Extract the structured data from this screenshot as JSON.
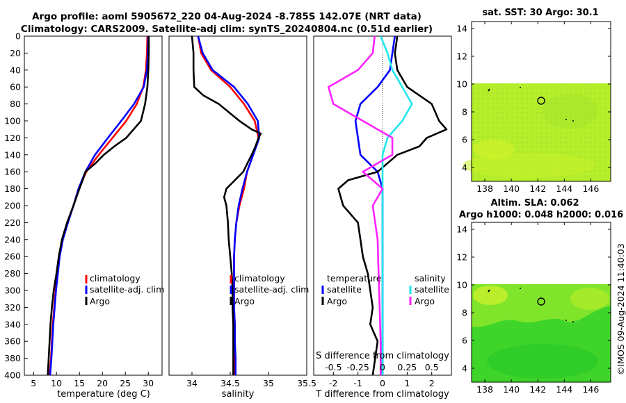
{
  "title_line1": "Argo profile: aoml 5905672_220 04-Aug-2024 -8.785S 142.07E (NRT data)",
  "title_line2": "Climatology: CARS2009. Satellite-adj clim: synTS_20240804.nc (0.51d earlier)",
  "map1_title": "sat. SST: 30 Argo: 30.1",
  "map2_title1": "Altim. SLA: 0.062",
  "map2_title2": "Argo h1000: 0.048 h2000: 0.016",
  "side_stamp": "©IMOS 09-Aug-2024 11:40:03",
  "colors": {
    "climatology": "#ff0000",
    "satellite": "#0000ff",
    "argo": "#000000",
    "s_satellite": "#22e6ee",
    "s_argo": "#ff22ff"
  },
  "chart_data": [
    {
      "type": "line",
      "name": "temperature",
      "xlabel": "temperature (deg C)",
      "ylabel": "",
      "xlim": [
        3,
        33
      ],
      "ylim": [
        400,
        0
      ],
      "xticks": [
        5,
        10,
        15,
        20,
        25,
        30
      ],
      "yticks": [
        0,
        20,
        40,
        60,
        80,
        100,
        120,
        140,
        160,
        180,
        200,
        220,
        240,
        260,
        280,
        300,
        320,
        340,
        360,
        380,
        400
      ],
      "legend": [
        "climatology",
        "satellite-adj. clim",
        "Argo"
      ],
      "series": [
        {
          "name": "climatology",
          "depth": [
            0,
            20,
            40,
            60,
            80,
            100,
            120,
            140,
            160,
            180,
            200,
            220,
            240,
            260,
            280,
            300,
            320,
            340,
            360,
            380,
            400
          ],
          "values": [
            29.8,
            29.7,
            29.5,
            28.9,
            27.5,
            25.2,
            22.2,
            19.2,
            16.5,
            14.8,
            13.7,
            12.4,
            11.3,
            10.6,
            10.2,
            9.8,
            9.5,
            9.2,
            9.0,
            8.8,
            8.5
          ]
        },
        {
          "name": "satellite-adj. clim",
          "depth": [
            0,
            20,
            40,
            60,
            80,
            100,
            120,
            140,
            160,
            180,
            200,
            220,
            240,
            260,
            280,
            300,
            320,
            340,
            360,
            380,
            400
          ],
          "values": [
            30.0,
            29.9,
            29.7,
            29.0,
            26.9,
            24.1,
            21.2,
            18.4,
            16.3,
            14.8,
            13.7,
            12.5,
            11.4,
            10.7,
            10.3,
            9.9,
            9.6,
            9.3,
            9.1,
            8.9,
            8.6
          ]
        },
        {
          "name": "Argo",
          "depth": [
            0,
            20,
            40,
            60,
            80,
            100,
            110,
            120,
            130,
            140,
            150,
            160,
            170,
            180,
            200,
            220,
            240,
            260,
            280,
            300,
            320,
            340,
            360,
            380,
            400
          ],
          "values": [
            30.1,
            30.1,
            30.0,
            29.8,
            29.3,
            28.4,
            26.8,
            25.2,
            22.6,
            20.3,
            18.5,
            16.3,
            15.7,
            15.0,
            13.7,
            12.3,
            11.2,
            10.5,
            10.0,
            9.4,
            9.0,
            8.7,
            8.5,
            8.3,
            8.1
          ]
        }
      ]
    },
    {
      "type": "line",
      "name": "salinity",
      "xlabel": "salinity",
      "xlim": [
        33.7,
        35.5
      ],
      "ylim": [
        400,
        0
      ],
      "xticks": [
        34,
        34.5,
        35,
        35.5
      ],
      "legend": [
        "climatology",
        "satellite-adj. clim",
        "Argo"
      ],
      "series": [
        {
          "name": "climatology",
          "depth": [
            0,
            20,
            40,
            60,
            80,
            100,
            120,
            140,
            160,
            180,
            200,
            220,
            240,
            260,
            280,
            300,
            320,
            340,
            360,
            380,
            400
          ],
          "values": [
            34.08,
            34.12,
            34.25,
            34.5,
            34.68,
            34.82,
            34.87,
            34.8,
            34.72,
            34.68,
            34.62,
            34.58,
            34.56,
            34.55,
            34.55,
            34.55,
            34.55,
            34.56,
            34.56,
            34.56,
            34.56
          ]
        },
        {
          "name": "satellite-adj. clim",
          "depth": [
            0,
            20,
            40,
            60,
            80,
            100,
            120,
            140,
            160,
            180,
            200,
            220,
            240,
            260,
            280,
            300,
            320,
            340,
            360,
            380,
            400
          ],
          "values": [
            34.08,
            34.14,
            34.27,
            34.55,
            34.73,
            34.86,
            34.88,
            34.8,
            34.72,
            34.66,
            34.61,
            34.58,
            34.56,
            34.55,
            34.55,
            34.55,
            34.55,
            34.56,
            34.56,
            34.57,
            34.57
          ]
        },
        {
          "name": "Argo",
          "depth": [
            0,
            20,
            40,
            60,
            70,
            80,
            100,
            110,
            115,
            120,
            130,
            140,
            160,
            180,
            190,
            200,
            220,
            240,
            260,
            280,
            300,
            320,
            340,
            360,
            380,
            400
          ],
          "values": [
            34.0,
            34.02,
            34.02,
            34.03,
            34.15,
            34.35,
            34.62,
            34.78,
            34.9,
            34.87,
            34.83,
            34.78,
            34.67,
            34.45,
            34.42,
            34.45,
            34.47,
            34.48,
            34.5,
            34.52,
            34.53,
            34.53,
            34.54,
            34.54,
            34.54,
            34.54
          ]
        }
      ]
    },
    {
      "type": "line",
      "name": "difference",
      "xlabel": "T difference from climatology",
      "top_axis_label": "S difference from climatology",
      "xlim": [
        -2.8,
        2.8
      ],
      "ylim": [
        400,
        0
      ],
      "xticks": [
        -2,
        -1,
        0,
        1,
        2
      ],
      "top_ticks": [
        "-0.5",
        "-0.25",
        "0",
        "0.25",
        "0.5"
      ],
      "legend_left_title": "temperature",
      "legend_right_title": "salinity",
      "legend": [
        "satellite",
        "Argo",
        "satellite",
        "Argo"
      ],
      "series": [
        {
          "name": "T satellite",
          "depth": [
            0,
            20,
            40,
            60,
            80,
            100,
            120,
            140,
            160,
            180,
            200,
            240,
            280,
            320,
            360,
            400
          ],
          "values": [
            0.5,
            0.4,
            0.3,
            -0.2,
            -0.9,
            -1.1,
            -1.0,
            -0.9,
            -0.2,
            0.0,
            0.0,
            0.0,
            0.0,
            0.0,
            0.0,
            0.0
          ]
        },
        {
          "name": "T Argo",
          "depth": [
            0,
            20,
            40,
            60,
            80,
            100,
            110,
            120,
            130,
            140,
            160,
            170,
            180,
            200,
            220,
            240,
            260,
            280,
            300,
            320,
            340,
            360,
            380,
            400
          ],
          "values": [
            0.6,
            0.5,
            0.6,
            1.0,
            2.0,
            2.3,
            2.6,
            1.8,
            1.5,
            0.6,
            -0.2,
            -1.4,
            -1.8,
            -1.6,
            -1.0,
            -0.9,
            -0.8,
            -0.6,
            -0.5,
            -0.4,
            -0.5,
            -0.2,
            -0.3,
            -0.4
          ]
        },
        {
          "name": "S satellite",
          "depth": [
            0,
            20,
            40,
            60,
            80,
            100,
            120,
            140,
            160,
            180,
            200,
            240,
            280,
            320,
            360,
            400
          ],
          "values": [
            -0.02,
            0.05,
            0.1,
            0.2,
            0.3,
            0.2,
            0.05,
            0.0,
            0.0,
            0.0,
            0.0,
            0.0,
            0.0,
            0.0,
            0.0,
            0.0
          ]
        },
        {
          "name": "S Argo",
          "depth": [
            0,
            20,
            40,
            60,
            80,
            100,
            120,
            140,
            160,
            180,
            200,
            240,
            280,
            320,
            360,
            400
          ],
          "values": [
            -0.08,
            -0.1,
            -0.25,
            -0.55,
            -0.5,
            -0.2,
            0.1,
            0.1,
            -0.2,
            0.0,
            -0.1,
            -0.05,
            -0.04,
            -0.03,
            -0.02,
            -0.02
          ]
        }
      ]
    },
    {
      "type": "heatmap",
      "name": "sat-SST-map",
      "title": "sat. SST: 30 Argo: 30.1",
      "xlim": [
        137,
        147.5
      ],
      "ylim": [
        3,
        14.5
      ],
      "xticks": [
        138,
        140,
        142,
        144,
        146
      ],
      "yticks": [
        4,
        6,
        8,
        10,
        12,
        14
      ],
      "data_extent_lat": [
        3,
        10
      ],
      "argo_position": [
        142.07,
        8.785
      ]
    },
    {
      "type": "heatmap",
      "name": "altimetry-SLA-map",
      "title": "Altim. SLA: 0.062",
      "xlim": [
        137,
        147.5
      ],
      "ylim": [
        3,
        14.5
      ],
      "xticks": [
        138,
        140,
        142,
        144,
        146
      ],
      "yticks": [
        4,
        6,
        8,
        10,
        12,
        14
      ],
      "data_extent_lat": [
        3,
        10
      ],
      "argo_position": [
        142.07,
        8.785
      ]
    }
  ]
}
